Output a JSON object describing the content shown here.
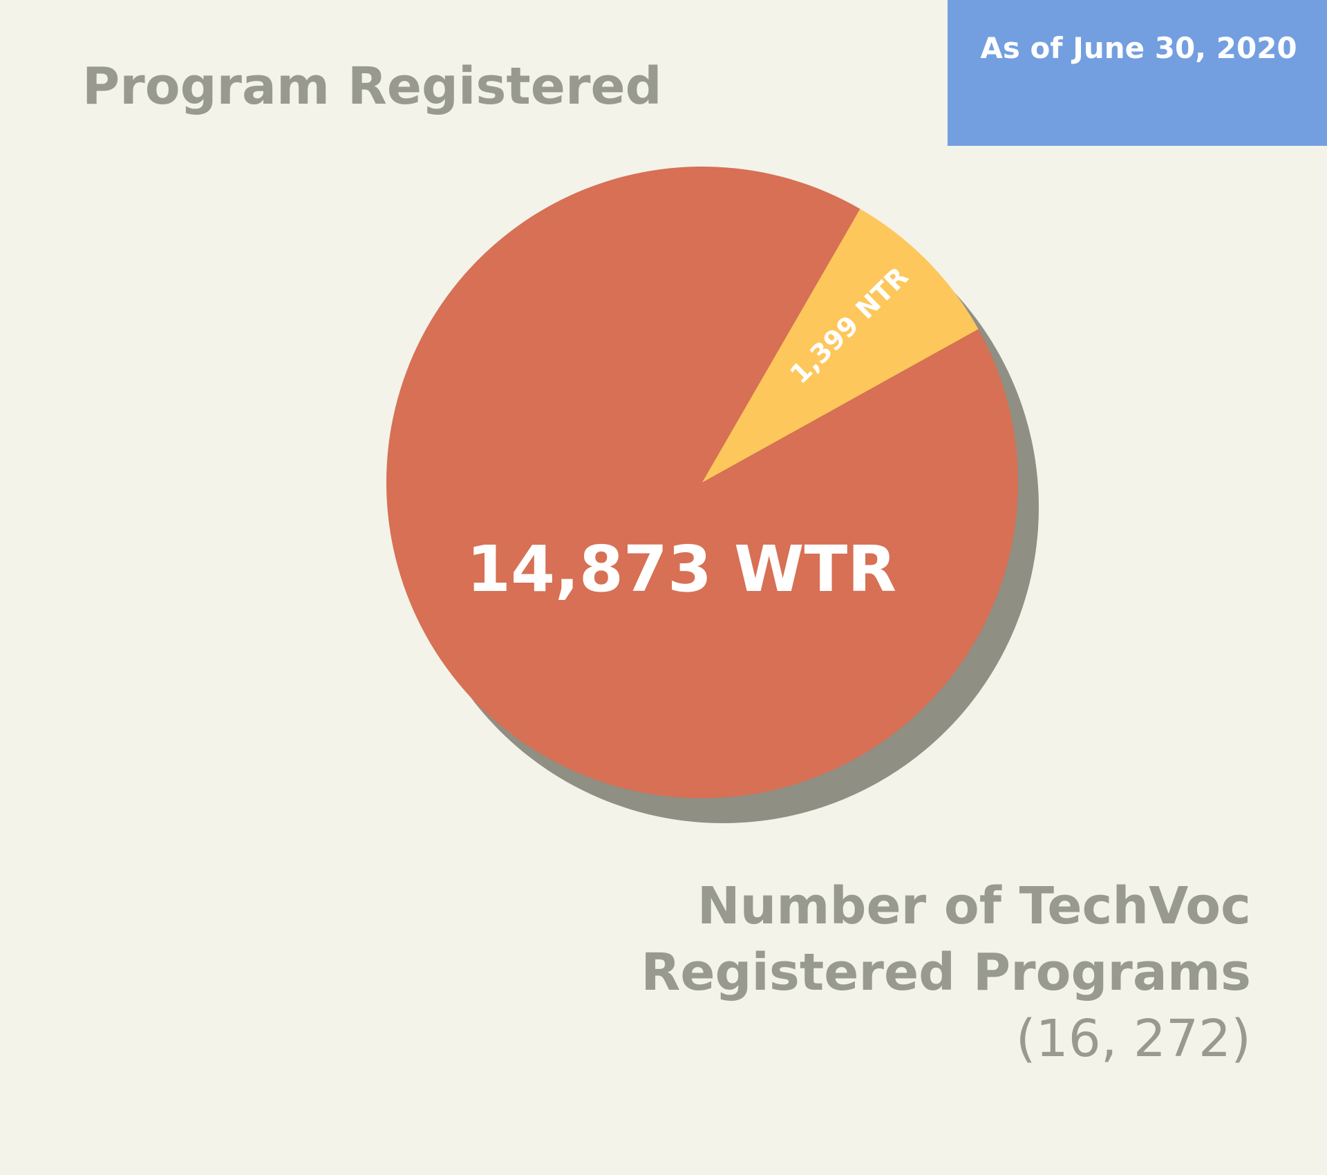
{
  "chart_data": {
    "type": "pie",
    "title": "Program Registered",
    "subtitle": "As of June 30, 2020",
    "values": [
      14873,
      1399
    ],
    "value_labels": [
      "14,873 WTR",
      "1,399 NTR"
    ],
    "colors": [
      "#d77054",
      "#fdc75b"
    ],
    "annotation": [
      "Number of TechVoc",
      "Registered Programs",
      "(16, 272)"
    ]
  }
}
